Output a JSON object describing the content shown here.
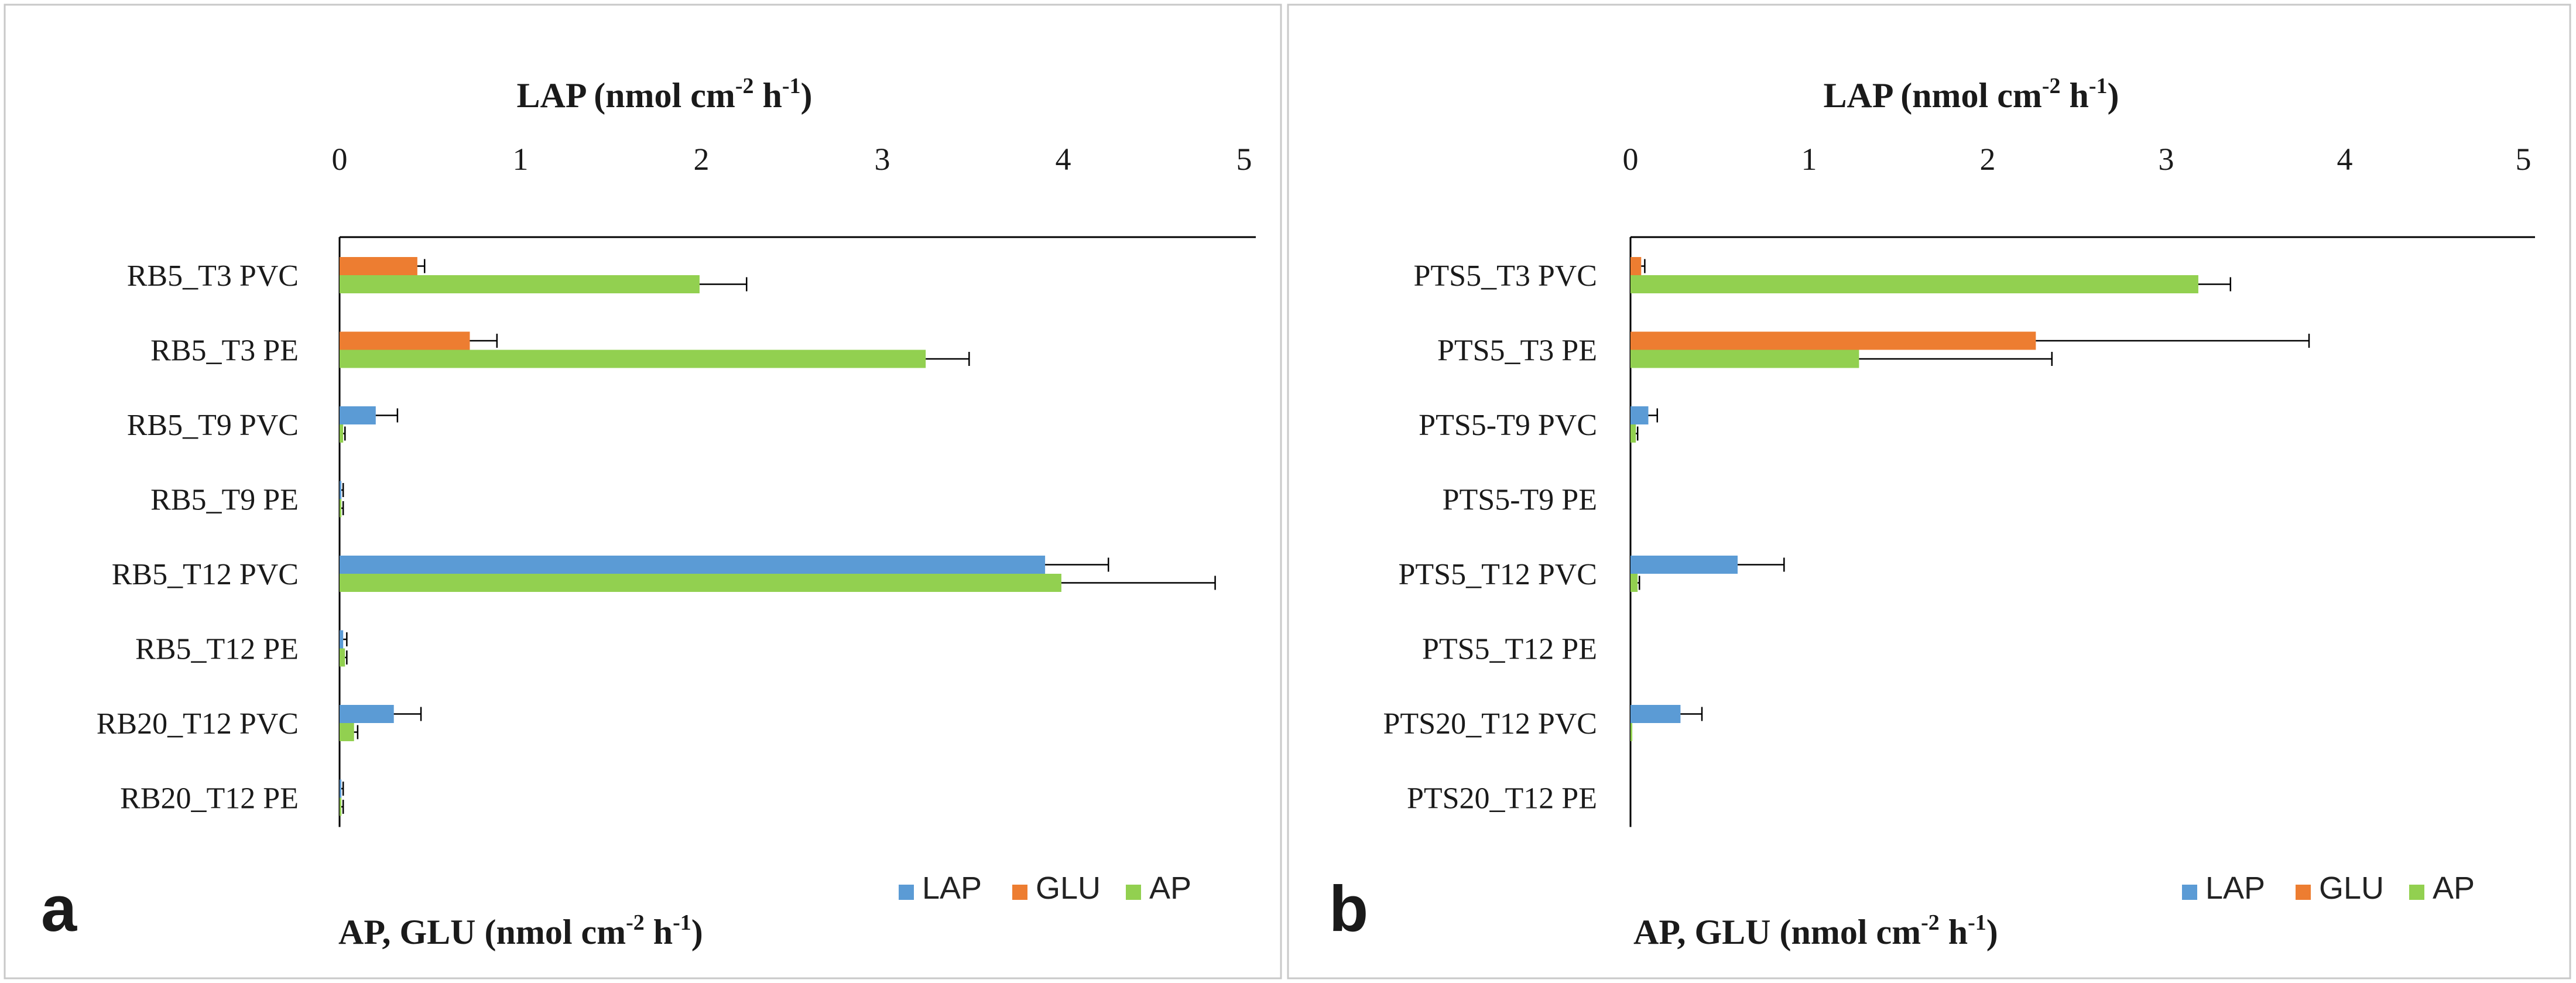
{
  "chart_data": [
    {
      "type": "bar",
      "orientation": "horizontal",
      "panel_label": "a",
      "title_main": "LAP (nmol cm",
      "title_sup1": "-2",
      "title_mid": " h",
      "title_sup2": "-1",
      "title_end": ")",
      "bottom_main": "AP, GLU (nmol cm",
      "bottom_sup1": "-2",
      "bottom_mid": " h",
      "bottom_sup2": "-1",
      "bottom_end": ")",
      "xlim": [
        0,
        5
      ],
      "ticks": [
        "0",
        "1",
        "2",
        "3",
        "4",
        "5"
      ],
      "legend": [
        "LAP",
        "GLU",
        "AP"
      ],
      "categories": [
        "RB5_T3 PVC",
        "RB5_T3 PE",
        "RB5_T9 PVC",
        "RB5_T9 PE",
        "RB5_T12 PVC",
        "RB5_T12 PE",
        "RB20_T12 PVC",
        "RB20_T12 PE"
      ],
      "series": [
        {
          "name": "LAP",
          "color": "#5B9BD5",
          "values": [
            0,
            0,
            0.2,
            0.01,
            3.9,
            0.02,
            0.3,
            0.01
          ],
          "errors": [
            0,
            0,
            0.12,
            0.01,
            0.35,
            0.02,
            0.15,
            0.01
          ]
        },
        {
          "name": "GLU",
          "color": "#ED7D31",
          "values": [
            0.43,
            0.72,
            0.05,
            0.0,
            0.08,
            0.0,
            0.0,
            0.0
          ],
          "errors": [
            0.04,
            0.15,
            0.02,
            0.0,
            0.03,
            0.0,
            0.0,
            0.0
          ]
        },
        {
          "name": "AP",
          "color": "#92D050",
          "values": [
            1.99,
            3.24,
            0.02,
            0.01,
            3.99,
            0.03,
            0.08,
            0.01
          ],
          "errors": [
            0.26,
            0.24,
            0.01,
            0.01,
            0.85,
            0.01,
            0.02,
            0.01
          ]
        }
      ]
    },
    {
      "type": "bar",
      "orientation": "horizontal",
      "panel_label": "b",
      "title_main": "LAP (nmol cm",
      "title_sup1": "-2",
      "title_mid": " h",
      "title_sup2": "-1",
      "title_end": ")",
      "bottom_main": "AP, GLU (nmol cm",
      "bottom_sup1": "-2",
      "bottom_mid": " h",
      "bottom_sup2": "-1",
      "bottom_end": ")",
      "xlim": [
        0,
        5
      ],
      "ticks": [
        "0",
        "1",
        "2",
        "3",
        "4",
        "5"
      ],
      "legend": [
        "LAP",
        "GLU",
        "AP"
      ],
      "categories": [
        "PTS5_T3 PVC",
        "PTS5_T3 PE",
        "PTS5-T9 PVC",
        "PTS5-T9 PE",
        "PTS5_T12 PVC",
        "PTS5_T12 PE",
        "PTS20_T12 PVC",
        "PTS20_T12 PE"
      ],
      "series": [
        {
          "name": "LAP",
          "color": "#5B9BD5",
          "values": [
            0,
            0,
            0.1,
            0.0,
            0.6,
            0.0,
            0.28,
            0.0
          ],
          "errors": [
            0,
            0,
            0.05,
            0.0,
            0.26,
            0.0,
            0.12,
            0.0
          ]
        },
        {
          "name": "GLU",
          "color": "#ED7D31",
          "values": [
            0.06,
            2.27,
            0.0,
            0.0,
            0.0,
            0.0,
            0.0,
            0.0
          ],
          "errors": [
            0.02,
            1.53,
            0.0,
            0.0,
            0.0,
            0.0,
            0.0,
            0.0
          ]
        },
        {
          "name": "AP",
          "color": "#92D050",
          "values": [
            3.18,
            1.28,
            0.03,
            0.0,
            0.04,
            0.0,
            0.01,
            0.0
          ],
          "errors": [
            0.18,
            1.08,
            0.01,
            0.0,
            0.01,
            0.0,
            0.0,
            0.0
          ]
        }
      ]
    }
  ]
}
